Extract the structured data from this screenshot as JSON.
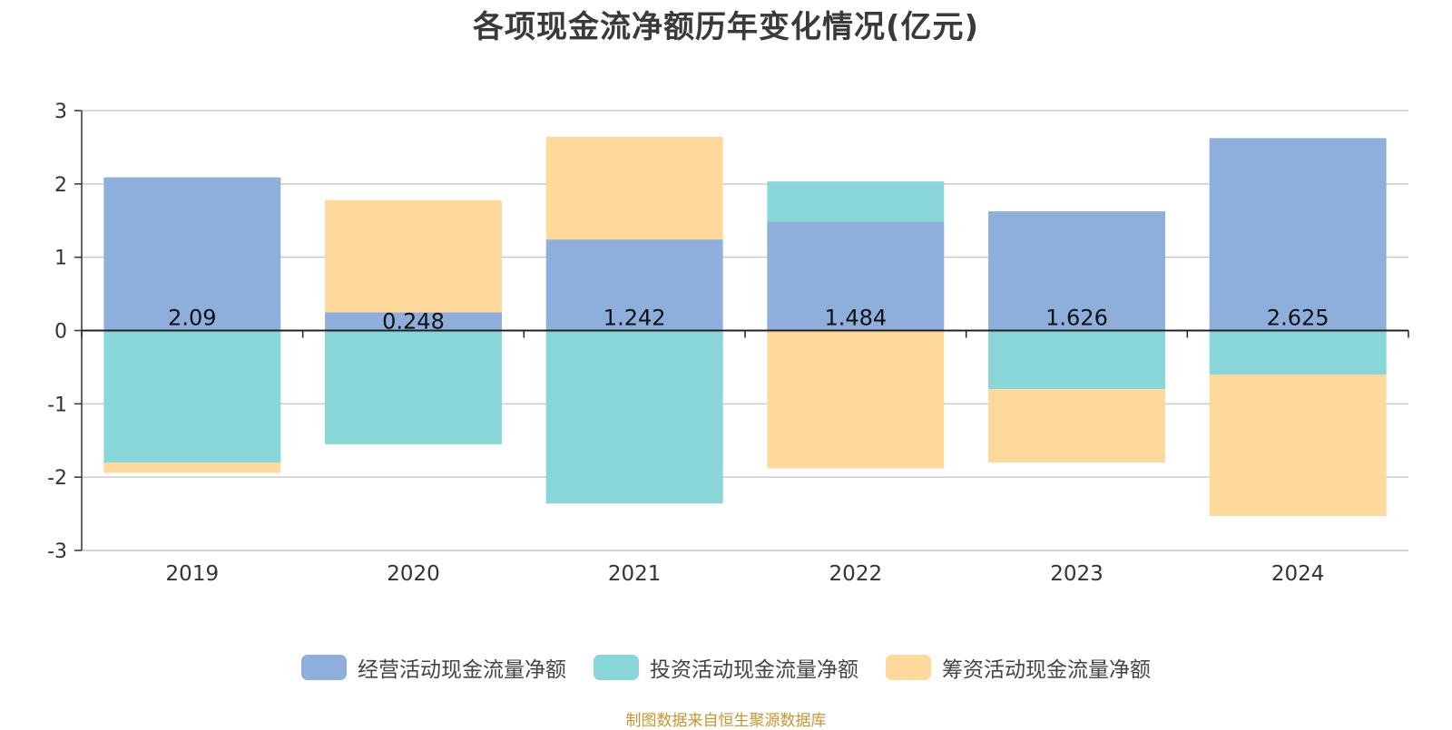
{
  "chart_data": {
    "type": "bar",
    "stacked": true,
    "title": "各项现金流净额历年变化情况(亿元)",
    "xlabel": "",
    "ylabel": "",
    "categories": [
      "2019",
      "2020",
      "2021",
      "2022",
      "2023",
      "2024"
    ],
    "ylim": [
      -3,
      3
    ],
    "yticks": [
      3,
      2,
      1,
      0,
      -1,
      -2,
      -3
    ],
    "grid": true,
    "legend_position": "bottom",
    "series": [
      {
        "name": "经营活动现金流量净额",
        "color": "#8eaedb",
        "values": [
          2.09,
          0.248,
          1.242,
          1.484,
          1.626,
          2.625
        ],
        "data_labels": [
          "2.09",
          "0.248",
          "1.242",
          "1.484",
          "1.626",
          "2.625"
        ]
      },
      {
        "name": "投资活动现金流量净额",
        "color": "#88d6d8",
        "values": [
          -1.8,
          -1.55,
          -2.36,
          0.55,
          -0.8,
          -0.6
        ]
      },
      {
        "name": "筹资活动现金流量净额",
        "color": "#fed99b",
        "values": [
          -0.14,
          1.53,
          1.4,
          -1.88,
          -1.0,
          -1.93
        ]
      }
    ]
  },
  "footer": {
    "source": "制图数据来自恒生聚源数据库"
  }
}
